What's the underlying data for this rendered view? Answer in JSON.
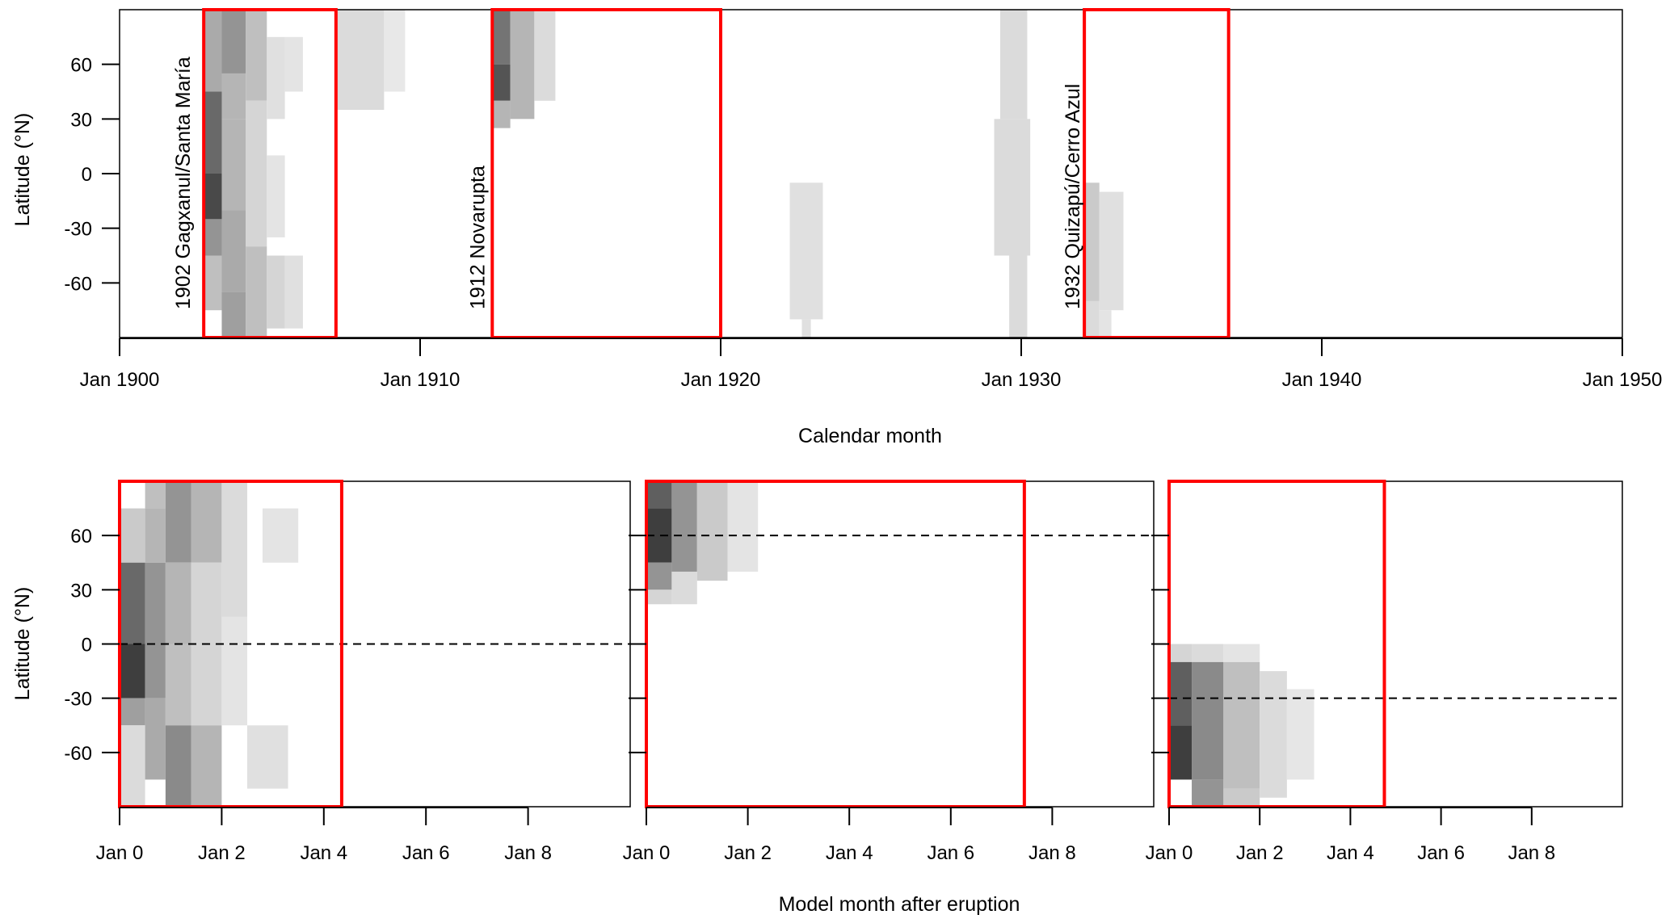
{
  "chart_data": [
    {
      "type": "heatmap",
      "title": "",
      "xlabel": "Calendar month",
      "ylabel": "Latitude (°N)",
      "x_unit": "year",
      "xlim": [
        1900,
        1950
      ],
      "ylim": [
        -90,
        90
      ],
      "xticks": [
        1900,
        1910,
        1920,
        1930,
        1940,
        1950
      ],
      "xtick_labels": [
        "Jan 1900",
        "Jan 1910",
        "Jan 1920",
        "Jan 1930",
        "Jan 1940",
        "Jan 1950"
      ],
      "yticks": [
        60,
        30,
        0,
        -30,
        -60
      ],
      "ytick_labels": [
        "60",
        "30",
        "0",
        "-30",
        "-60"
      ],
      "annotations": [
        {
          "text": "1902 Gagxanul/Santa María",
          "x": 1902.1
        },
        {
          "text": "1912 Novarupta",
          "x": 1911.9
        },
        {
          "text": "1932 Quizapú/Cerro Azul",
          "x": 1931.7
        }
      ],
      "highlight_boxes": [
        {
          "x0": 1902.8,
          "x1": 1907.2,
          "y0": -90,
          "y1": 90,
          "color": "#ff0000"
        },
        {
          "x0": 1912.4,
          "x1": 1920.0,
          "y0": -90,
          "y1": 90,
          "color": "#ff0000"
        },
        {
          "x0": 1932.1,
          "x1": 1936.9,
          "y0": -90,
          "y1": 90,
          "color": "#ff0000"
        }
      ],
      "cells": [
        {
          "x0": 1902.8,
          "x1": 1903.4,
          "y0": 45,
          "y1": 90,
          "v": 0.35
        },
        {
          "x0": 1902.8,
          "x1": 1903.4,
          "y0": 0,
          "y1": 45,
          "v": 0.65
        },
        {
          "x0": 1902.8,
          "x1": 1903.4,
          "y0": -25,
          "y1": 0,
          "v": 0.8
        },
        {
          "x0": 1902.8,
          "x1": 1903.4,
          "y0": -45,
          "y1": -25,
          "v": 0.45
        },
        {
          "x0": 1902.8,
          "x1": 1903.4,
          "y0": -75,
          "y1": -45,
          "v": 0.25
        },
        {
          "x0": 1903.4,
          "x1": 1904.2,
          "y0": 55,
          "y1": 90,
          "v": 0.45
        },
        {
          "x0": 1903.4,
          "x1": 1904.2,
          "y0": 30,
          "y1": 55,
          "v": 0.3
        },
        {
          "x0": 1903.4,
          "x1": 1904.2,
          "y0": -20,
          "y1": 30,
          "v": 0.3
        },
        {
          "x0": 1903.4,
          "x1": 1904.2,
          "y0": -65,
          "y1": -20,
          "v": 0.35
        },
        {
          "x0": 1903.4,
          "x1": 1904.2,
          "y0": -90,
          "y1": -65,
          "v": 0.4
        },
        {
          "x0": 1904.2,
          "x1": 1904.9,
          "y0": 40,
          "y1": 90,
          "v": 0.25
        },
        {
          "x0": 1904.2,
          "x1": 1904.9,
          "y0": -40,
          "y1": 40,
          "v": 0.15
        },
        {
          "x0": 1904.2,
          "x1": 1904.9,
          "y0": -90,
          "y1": -40,
          "v": 0.25
        },
        {
          "x0": 1904.9,
          "x1": 1905.5,
          "y0": 30,
          "y1": 75,
          "v": 0.1
        },
        {
          "x0": 1904.9,
          "x1": 1905.5,
          "y0": -35,
          "y1": 10,
          "v": 0.08
        },
        {
          "x0": 1904.9,
          "x1": 1905.5,
          "y0": -85,
          "y1": -45,
          "v": 0.15
        },
        {
          "x0": 1905.5,
          "x1": 1906.1,
          "y0": 45,
          "y1": 75,
          "v": 0.08
        },
        {
          "x0": 1905.5,
          "x1": 1906.1,
          "y0": -85,
          "y1": -45,
          "v": 0.1
        },
        {
          "x0": 1907.2,
          "x1": 1908.8,
          "y0": 35,
          "y1": 90,
          "v": 0.12
        },
        {
          "x0": 1908.8,
          "x1": 1909.5,
          "y0": 45,
          "y1": 90,
          "v": 0.06
        },
        {
          "x0": 1912.4,
          "x1": 1913.0,
          "y0": 60,
          "y1": 90,
          "v": 0.6
        },
        {
          "x0": 1912.4,
          "x1": 1913.0,
          "y0": 40,
          "y1": 60,
          "v": 0.75
        },
        {
          "x0": 1912.4,
          "x1": 1913.0,
          "y0": 25,
          "y1": 40,
          "v": 0.3
        },
        {
          "x0": 1913.0,
          "x1": 1913.8,
          "y0": 30,
          "y1": 90,
          "v": 0.3
        },
        {
          "x0": 1913.8,
          "x1": 1914.5,
          "y0": 40,
          "y1": 90,
          "v": 0.12
        },
        {
          "x0": 1922.3,
          "x1": 1923.4,
          "y0": -80,
          "y1": -5,
          "v": 0.1
        },
        {
          "x0": 1922.7,
          "x1": 1923.0,
          "y0": -90,
          "y1": -80,
          "v": 0.1
        },
        {
          "x0": 1929.3,
          "x1": 1930.2,
          "y0": 30,
          "y1": 90,
          "v": 0.12
        },
        {
          "x0": 1929.1,
          "x1": 1930.3,
          "y0": -45,
          "y1": 30,
          "v": 0.12
        },
        {
          "x0": 1929.6,
          "x1": 1930.2,
          "y0": -90,
          "y1": -45,
          "v": 0.12
        },
        {
          "x0": 1932.1,
          "x1": 1932.6,
          "y0": -70,
          "y1": -5,
          "v": 0.2
        },
        {
          "x0": 1932.1,
          "x1": 1932.6,
          "y0": -90,
          "y1": -70,
          "v": 0.12
        },
        {
          "x0": 1932.6,
          "x1": 1933.4,
          "y0": -75,
          "y1": -10,
          "v": 0.1
        },
        {
          "x0": 1932.6,
          "x1": 1933.0,
          "y0": -90,
          "y1": -75,
          "v": 0.08
        }
      ]
    },
    {
      "type": "heatmap",
      "title": "",
      "xlabel": "Model month after eruption",
      "ylabel": "Latitude (°N)",
      "x_unit": "years after eruption",
      "xlim": [
        0,
        10
      ],
      "ylim": [
        -90,
        90
      ],
      "xticks": [
        0,
        2,
        4,
        6,
        8
      ],
      "xtick_labels": [
        "Jan 0",
        "Jan 2",
        "Jan 4",
        "Jan 6",
        "Jan 8"
      ],
      "yticks": [
        60,
        30,
        0,
        -30,
        -60
      ],
      "ytick_labels": [
        "60",
        "30",
        "0",
        "-30",
        "-60"
      ],
      "eruption_latitude": 0,
      "highlight_boxes": [
        {
          "x0": 0,
          "x1": 4.35,
          "y0": -90,
          "y1": 90,
          "color": "#ff0000"
        }
      ],
      "cells": [
        {
          "x0": 0,
          "x1": 0.5,
          "y0": 45,
          "y1": 75,
          "v": 0.2
        },
        {
          "x0": 0,
          "x1": 0.5,
          "y0": 0,
          "y1": 45,
          "v": 0.65
        },
        {
          "x0": 0,
          "x1": 0.5,
          "y0": -30,
          "y1": 0,
          "v": 0.85
        },
        {
          "x0": 0,
          "x1": 0.5,
          "y0": -45,
          "y1": -30,
          "v": 0.4
        },
        {
          "x0": 0,
          "x1": 0.5,
          "y0": -90,
          "y1": -45,
          "v": 0.12
        },
        {
          "x0": 0.5,
          "x1": 0.9,
          "y0": 75,
          "y1": 90,
          "v": 0.25
        },
        {
          "x0": 0.5,
          "x1": 0.9,
          "y0": 45,
          "y1": 75,
          "v": 0.3
        },
        {
          "x0": 0.5,
          "x1": 0.9,
          "y0": 0,
          "y1": 45,
          "v": 0.45
        },
        {
          "x0": 0.5,
          "x1": 0.9,
          "y0": -30,
          "y1": 0,
          "v": 0.45
        },
        {
          "x0": 0.5,
          "x1": 0.9,
          "y0": -75,
          "y1": -30,
          "v": 0.35
        },
        {
          "x0": 0.9,
          "x1": 1.4,
          "y0": 45,
          "y1": 90,
          "v": 0.45
        },
        {
          "x0": 0.9,
          "x1": 1.4,
          "y0": 0,
          "y1": 45,
          "v": 0.3
        },
        {
          "x0": 0.9,
          "x1": 1.4,
          "y0": -45,
          "y1": 0,
          "v": 0.25
        },
        {
          "x0": 0.9,
          "x1": 1.4,
          "y0": -90,
          "y1": -45,
          "v": 0.5
        },
        {
          "x0": 1.4,
          "x1": 2.0,
          "y0": 45,
          "y1": 90,
          "v": 0.3
        },
        {
          "x0": 1.4,
          "x1": 2.0,
          "y0": 0,
          "y1": 45,
          "v": 0.15
        },
        {
          "x0": 1.4,
          "x1": 2.0,
          "y0": -45,
          "y1": 0,
          "v": 0.15
        },
        {
          "x0": 1.4,
          "x1": 2.0,
          "y0": -90,
          "y1": -45,
          "v": 0.3
        },
        {
          "x0": 2.0,
          "x1": 2.5,
          "y0": 15,
          "y1": 90,
          "v": 0.12
        },
        {
          "x0": 2.0,
          "x1": 2.5,
          "y0": -45,
          "y1": 15,
          "v": 0.08
        },
        {
          "x0": 2.5,
          "x1": 3.3,
          "y0": -80,
          "y1": -45,
          "v": 0.1
        },
        {
          "x0": 2.8,
          "x1": 3.5,
          "y0": 45,
          "y1": 75,
          "v": 0.08
        }
      ]
    },
    {
      "type": "heatmap",
      "title": "",
      "xlabel": "Model month after eruption",
      "ylabel": "Latitude (°N)",
      "x_unit": "years after eruption",
      "xlim": [
        0,
        10
      ],
      "ylim": [
        -90,
        90
      ],
      "xticks": [
        0,
        2,
        4,
        6,
        8
      ],
      "xtick_labels": [
        "Jan 0",
        "Jan 2",
        "Jan 4",
        "Jan 6",
        "Jan 8"
      ],
      "eruption_latitude": 60,
      "highlight_boxes": [
        {
          "x0": 0,
          "x1": 7.45,
          "y0": -90,
          "y1": 90,
          "color": "#ff0000"
        }
      ],
      "cells": [
        {
          "x0": 0,
          "x1": 0.5,
          "y0": 75,
          "y1": 90,
          "v": 0.7
        },
        {
          "x0": 0,
          "x1": 0.5,
          "y0": 45,
          "y1": 75,
          "v": 0.85
        },
        {
          "x0": 0,
          "x1": 0.5,
          "y0": 30,
          "y1": 45,
          "v": 0.45
        },
        {
          "x0": 0,
          "x1": 0.5,
          "y0": 22,
          "y1": 30,
          "v": 0.15
        },
        {
          "x0": 0.5,
          "x1": 1.0,
          "y0": 40,
          "y1": 90,
          "v": 0.45
        },
        {
          "x0": 0.5,
          "x1": 1.0,
          "y0": 22,
          "y1": 40,
          "v": 0.12
        },
        {
          "x0": 1.0,
          "x1": 1.6,
          "y0": 35,
          "y1": 90,
          "v": 0.2
        },
        {
          "x0": 1.6,
          "x1": 2.2,
          "y0": 40,
          "y1": 90,
          "v": 0.08
        }
      ]
    },
    {
      "type": "heatmap",
      "title": "",
      "xlabel": "Model month after eruption",
      "ylabel": "Latitude (°N)",
      "x_unit": "years after eruption",
      "xlim": [
        0,
        10
      ],
      "ylim": [
        -90,
        90
      ],
      "xticks": [
        0,
        2,
        4,
        6,
        8
      ],
      "xtick_labels": [
        "Jan 0",
        "Jan 2",
        "Jan 4",
        "Jan 6",
        "Jan 8"
      ],
      "eruption_latitude": -30,
      "highlight_boxes": [
        {
          "x0": 0,
          "x1": 4.75,
          "y0": -90,
          "y1": 90,
          "color": "#ff0000"
        }
      ],
      "cells": [
        {
          "x0": 0,
          "x1": 0.5,
          "y0": -10,
          "y1": 0,
          "v": 0.15
        },
        {
          "x0": 0,
          "x1": 0.5,
          "y0": -45,
          "y1": -10,
          "v": 0.7
        },
        {
          "x0": 0,
          "x1": 0.5,
          "y0": -75,
          "y1": -45,
          "v": 0.85
        },
        {
          "x0": 0.5,
          "x1": 1.2,
          "y0": -10,
          "y1": 0,
          "v": 0.12
        },
        {
          "x0": 0.5,
          "x1": 1.2,
          "y0": -75,
          "y1": -10,
          "v": 0.5
        },
        {
          "x0": 0.5,
          "x1": 1.2,
          "y0": -90,
          "y1": -75,
          "v": 0.45
        },
        {
          "x0": 1.2,
          "x1": 2.0,
          "y0": -10,
          "y1": 0,
          "v": 0.08
        },
        {
          "x0": 1.2,
          "x1": 2.0,
          "y0": -80,
          "y1": -10,
          "v": 0.25
        },
        {
          "x0": 1.2,
          "x1": 2.0,
          "y0": -90,
          "y1": -80,
          "v": 0.2
        },
        {
          "x0": 2.0,
          "x1": 2.6,
          "y0": -85,
          "y1": -15,
          "v": 0.12
        },
        {
          "x0": 2.6,
          "x1": 3.2,
          "y0": -75,
          "y1": -25,
          "v": 0.07
        }
      ]
    }
  ]
}
